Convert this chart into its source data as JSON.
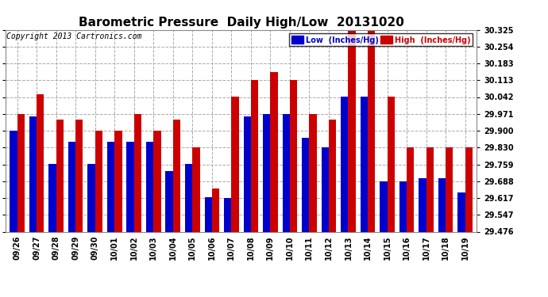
{
  "title": "Barometric Pressure  Daily High/Low  20131020",
  "copyright": "Copyright 2013 Cartronics.com",
  "legend_low": "Low  (Inches/Hg)",
  "legend_high": "High  (Inches/Hg)",
  "dates": [
    "09/26",
    "09/27",
    "09/28",
    "09/29",
    "09/30",
    "10/01",
    "10/02",
    "10/03",
    "10/04",
    "10/05",
    "10/06",
    "10/07",
    "10/08",
    "10/09",
    "10/10",
    "10/11",
    "10/12",
    "10/13",
    "10/14",
    "10/15",
    "10/16",
    "10/17",
    "10/18",
    "10/19"
  ],
  "low": [
    29.9,
    29.96,
    29.76,
    29.853,
    29.76,
    29.853,
    29.853,
    29.853,
    29.73,
    29.76,
    29.62,
    29.617,
    29.96,
    29.971,
    29.971,
    29.87,
    29.83,
    30.042,
    30.042,
    29.688,
    29.688,
    29.7,
    29.7,
    29.64
  ],
  "high": [
    29.971,
    30.054,
    29.947,
    29.947,
    29.9,
    29.9,
    29.971,
    29.9,
    29.947,
    29.83,
    29.659,
    30.042,
    30.113,
    30.148,
    30.113,
    29.971,
    29.947,
    30.325,
    30.325,
    30.042,
    29.83,
    29.83,
    29.83,
    29.83
  ],
  "ylim": [
    29.476,
    30.325
  ],
  "yticks": [
    29.476,
    29.547,
    29.617,
    29.688,
    29.759,
    29.83,
    29.9,
    29.971,
    30.042,
    30.113,
    30.183,
    30.254,
    30.325
  ],
  "bar_width": 0.38,
  "low_color": "#0000cc",
  "high_color": "#cc0000",
  "bg_color": "#ffffff",
  "grid_color": "#aaaaaa",
  "title_fontsize": 11,
  "tick_fontsize": 7,
  "copyright_fontsize": 7
}
